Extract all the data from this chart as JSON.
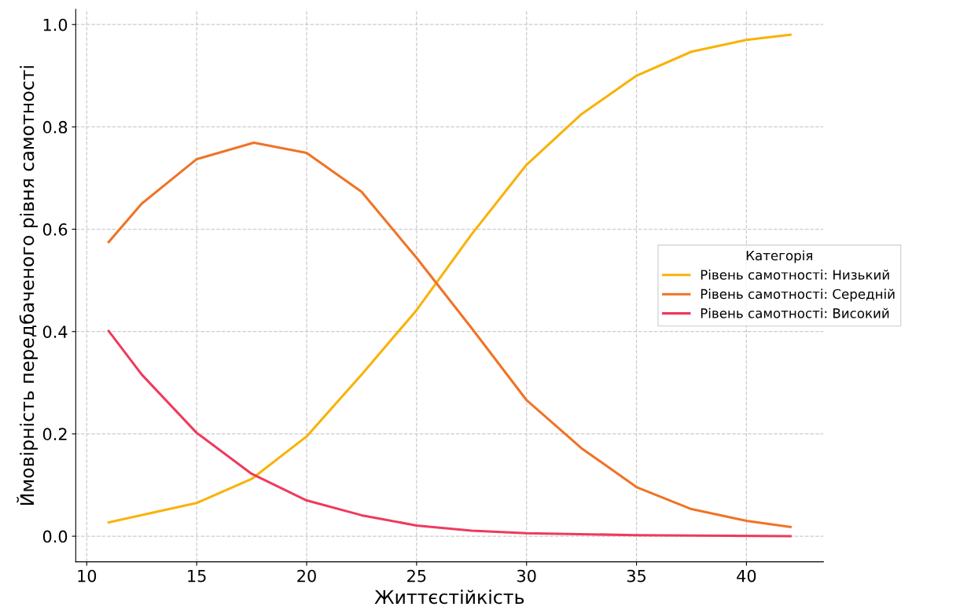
{
  "chart_data": {
    "type": "line",
    "xlabel": "Життєстійкість",
    "ylabel": "Ймовірність передбаченого рівня самотності",
    "legend_title": "Категорія",
    "legend": "right",
    "xlim": [
      9.5,
      43.5
    ],
    "xticks": [
      10,
      15,
      20,
      25,
      30,
      35,
      40
    ],
    "ylim": [
      -0.05,
      1.03
    ],
    "yticks": [
      {
        "value": 0,
        "label": "0.0"
      },
      0.2,
      0.4,
      0.6,
      0.8,
      {
        "value": 1,
        "label": "1.0"
      }
    ],
    "grid": true,
    "series": [
      {
        "name": "Рівень самотності: Низький",
        "color": "#f9b208",
        "x": [
          11,
          15,
          17.5,
          20,
          22.5,
          25,
          27.5,
          30,
          32.5,
          35,
          37.5,
          40,
          42
        ],
        "values": [
          0.027,
          0.065,
          0.112,
          0.195,
          0.316,
          0.442,
          0.59,
          0.726,
          0.825,
          0.9,
          0.947,
          0.97,
          0.98
        ]
      },
      {
        "name": "Рівень самотності: Середній",
        "color": "#f07326",
        "x": [
          11,
          12.5,
          15,
          17.6,
          20,
          22.5,
          25,
          27.5,
          30,
          32.5,
          35,
          37.5,
          40,
          42
        ],
        "values": [
          0.575,
          0.65,
          0.737,
          0.769,
          0.749,
          0.673,
          0.544,
          0.407,
          0.266,
          0.172,
          0.096,
          0.053,
          0.03,
          0.018
        ]
      },
      {
        "name": "Рівень самотності: Високий",
        "color": "#ef3a5d",
        "x": [
          11,
          12.5,
          15,
          17.5,
          20,
          22.5,
          25,
          27.5,
          30,
          35,
          42
        ],
        "values": [
          0.401,
          0.316,
          0.202,
          0.122,
          0.07,
          0.041,
          0.021,
          0.011,
          0.006,
          0.002,
          0.0
        ]
      }
    ]
  }
}
